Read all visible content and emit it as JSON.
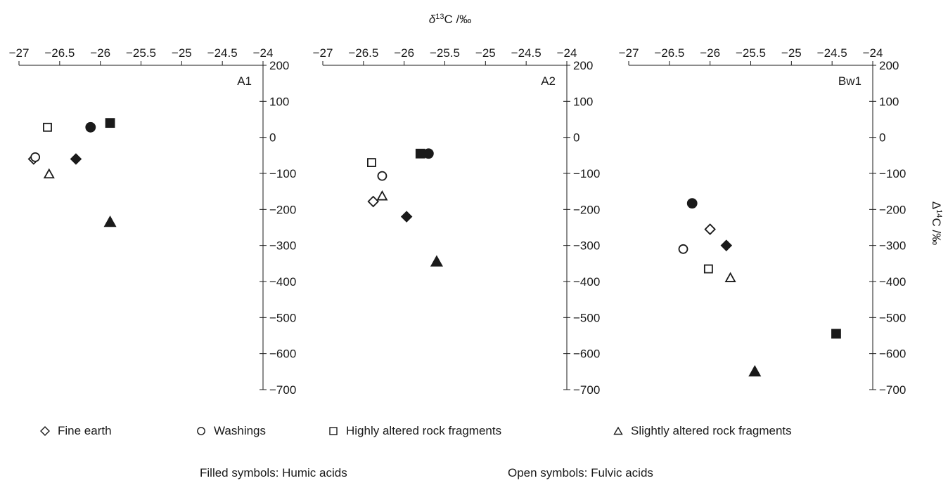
{
  "chart_data": {
    "type": "scatter",
    "xlabel_main": "δ",
    "xlabel_sup": "13",
    "xlabel_rest": "C /‰",
    "ylabel_main": "Δ",
    "ylabel_sup": "14",
    "ylabel_rest": "C /‰",
    "xlim": [
      -27,
      -24
    ],
    "ylim": [
      -700,
      200
    ],
    "x_ticks": [
      "−27",
      "−26.5",
      "−26",
      "−25.5",
      "−25",
      "−24.5",
      "−24"
    ],
    "x_tick_values": [
      -27,
      -26.5,
      -26,
      -25.5,
      -25,
      -24.5,
      -24
    ],
    "y_ticks": [
      "200",
      "100",
      "0",
      "−100",
      "−200",
      "−300",
      "−400",
      "−500",
      "−600",
      "−700"
    ],
    "y_tick_values": [
      200,
      100,
      0,
      -100,
      -200,
      -300,
      -400,
      -500,
      -600,
      -700
    ],
    "legend_placement": "bottom",
    "panels": [
      {
        "label": "A1",
        "points": [
          {
            "material": "fine_earth",
            "acid": "fulvic",
            "x": -26.82,
            "y": -60
          },
          {
            "material": "fine_earth",
            "acid": "humic",
            "x": -26.3,
            "y": -60
          },
          {
            "material": "washings",
            "acid": "fulvic",
            "x": -26.8,
            "y": -55
          },
          {
            "material": "washings",
            "acid": "humic",
            "x": -26.12,
            "y": 28
          },
          {
            "material": "highly_altered",
            "acid": "fulvic",
            "x": -26.65,
            "y": 28
          },
          {
            "material": "highly_altered",
            "acid": "humic",
            "x": -25.88,
            "y": 40
          },
          {
            "material": "slightly_altered",
            "acid": "fulvic",
            "x": -26.63,
            "y": -102
          },
          {
            "material": "slightly_altered",
            "acid": "humic",
            "x": -25.88,
            "y": -235
          }
        ]
      },
      {
        "label": "A2",
        "points": [
          {
            "material": "fine_earth",
            "acid": "fulvic",
            "x": -26.38,
            "y": -178
          },
          {
            "material": "fine_earth",
            "acid": "humic",
            "x": -25.97,
            "y": -220
          },
          {
            "material": "washings",
            "acid": "fulvic",
            "x": -26.27,
            "y": -107
          },
          {
            "material": "washings",
            "acid": "humic",
            "x": -25.7,
            "y": -45
          },
          {
            "material": "highly_altered",
            "acid": "fulvic",
            "x": -26.4,
            "y": -70
          },
          {
            "material": "highly_altered",
            "acid": "humic",
            "x": -25.8,
            "y": -45
          },
          {
            "material": "slightly_altered",
            "acid": "fulvic",
            "x": -26.27,
            "y": -163
          },
          {
            "material": "slightly_altered",
            "acid": "humic",
            "x": -25.6,
            "y": -345
          }
        ]
      },
      {
        "label": "Bw1",
        "points": [
          {
            "material": "fine_earth",
            "acid": "fulvic",
            "x": -26.0,
            "y": -255
          },
          {
            "material": "fine_earth",
            "acid": "humic",
            "x": -25.8,
            "y": -300
          },
          {
            "material": "washings",
            "acid": "fulvic",
            "x": -26.33,
            "y": -310
          },
          {
            "material": "washings",
            "acid": "humic",
            "x": -26.22,
            "y": -183
          },
          {
            "material": "highly_altered",
            "acid": "fulvic",
            "x": -26.02,
            "y": -365
          },
          {
            "material": "highly_altered",
            "acid": "humic",
            "x": -24.45,
            "y": -545
          },
          {
            "material": "slightly_altered",
            "acid": "fulvic",
            "x": -25.75,
            "y": -390
          },
          {
            "material": "slightly_altered",
            "acid": "humic",
            "x": -25.45,
            "y": -650
          }
        ]
      }
    ],
    "legend": [
      {
        "marker": "diamond",
        "label": "Fine earth"
      },
      {
        "marker": "circle",
        "label": "Washings"
      },
      {
        "marker": "square",
        "label": "Highly altered rock fragments"
      },
      {
        "marker": "triangle",
        "label": "Slightly altered rock fragments"
      }
    ],
    "notes": {
      "filled": "Filled symbols: Humic acids",
      "open": "Open symbols: Fulvic acids"
    }
  }
}
